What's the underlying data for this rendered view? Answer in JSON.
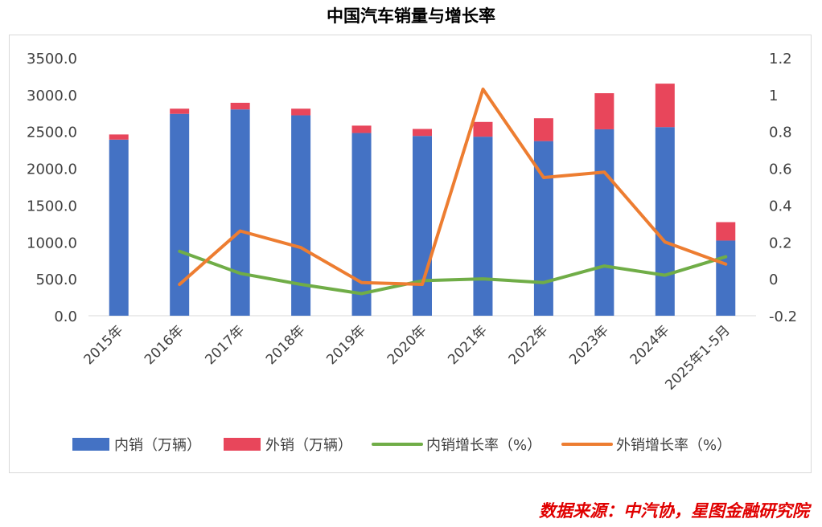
{
  "chart_data": {
    "type": "bar+line",
    "title": "中国汽车销量与增长率",
    "categories": [
      "2015年",
      "2016年",
      "2017年",
      "2018年",
      "2019年",
      "2020年",
      "2021年",
      "2022年",
      "2023年",
      "2024年",
      "2025年1-5月"
    ],
    "y_left": {
      "min": 0,
      "max": 3500,
      "ticks": [
        "0.0",
        "500.0",
        "1000.0",
        "1500.0",
        "2000.0",
        "2500.0",
        "3000.0",
        "3500.0"
      ]
    },
    "y_right": {
      "min": -0.2,
      "max": 1.2,
      "ticks": [
        "-0.2",
        "0",
        "0.2",
        "0.4",
        "0.6",
        "0.8",
        "1",
        "1.2"
      ]
    },
    "series": [
      {
        "name": "内销（万辆）",
        "type": "stacked-bar",
        "axis": "left",
        "color": "#4472c4",
        "values": [
          2390,
          2740,
          2800,
          2720,
          2480,
          2440,
          2430,
          2370,
          2530,
          2560,
          1020
        ]
      },
      {
        "name": "外销（万辆）",
        "type": "stacked-bar",
        "axis": "left",
        "color": "#e8465b",
        "values": [
          70,
          70,
          90,
          90,
          100,
          95,
          200,
          310,
          490,
          590,
          250
        ]
      },
      {
        "name": "内销增长率（%）",
        "type": "line",
        "axis": "right",
        "color": "#70ad47",
        "values": [
          null,
          0.15,
          0.03,
          -0.03,
          -0.08,
          -0.01,
          0.0,
          -0.02,
          0.07,
          0.02,
          0.12
        ]
      },
      {
        "name": "外销增长率（%）",
        "type": "line",
        "axis": "right",
        "color": "#ed7d31",
        "values": [
          null,
          -0.03,
          0.26,
          0.17,
          -0.02,
          -0.03,
          1.03,
          0.55,
          0.58,
          0.2,
          0.08
        ]
      }
    ]
  },
  "source": "数据来源：中汽协，星图金融研究院"
}
